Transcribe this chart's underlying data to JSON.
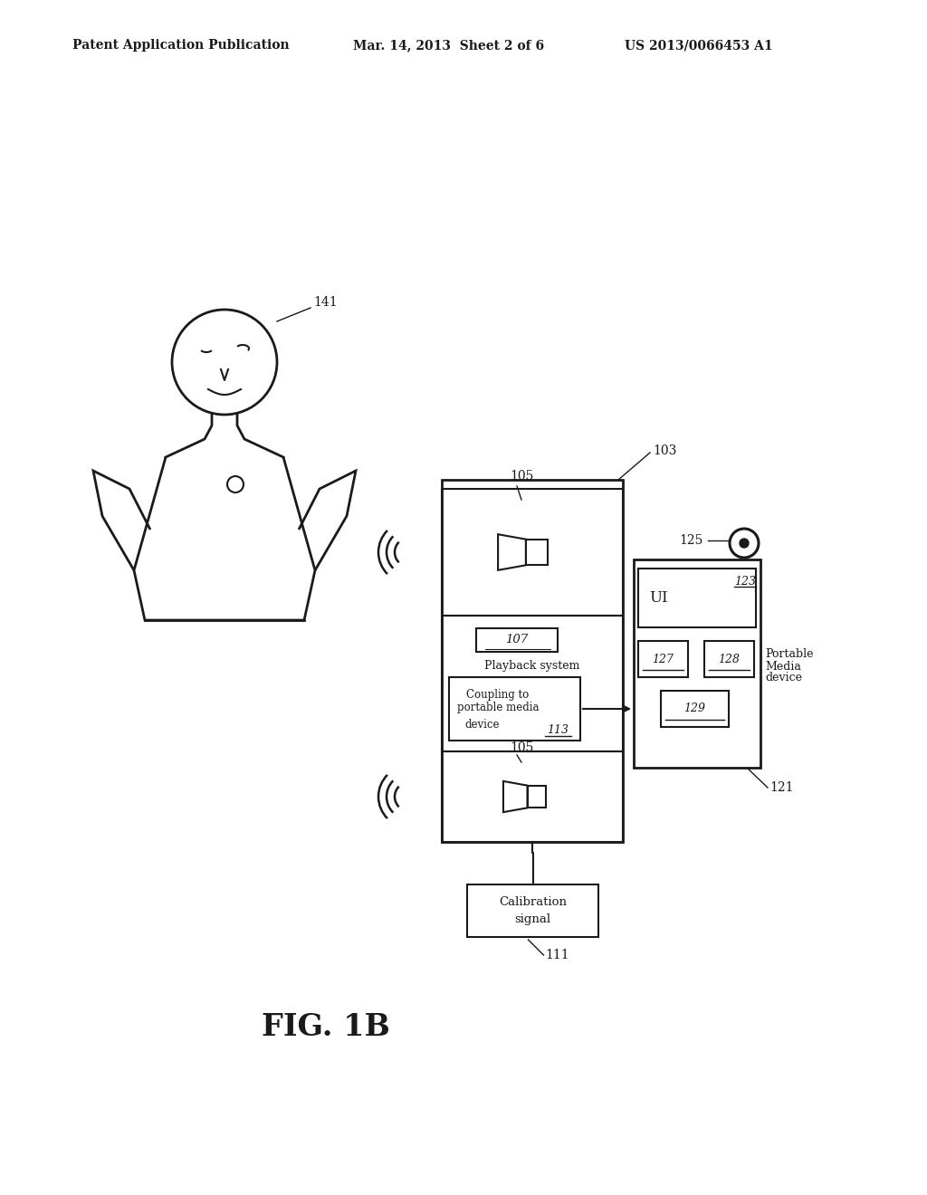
{
  "header_left": "Patent Application Publication",
  "header_center": "Mar. 14, 2013  Sheet 2 of 6",
  "header_right": "US 2013/0066453 A1",
  "figure_label": "FIG. 1B",
  "background_color": "#ffffff",
  "line_color": "#1a1a1a",
  "text_color": "#1a1a1a"
}
